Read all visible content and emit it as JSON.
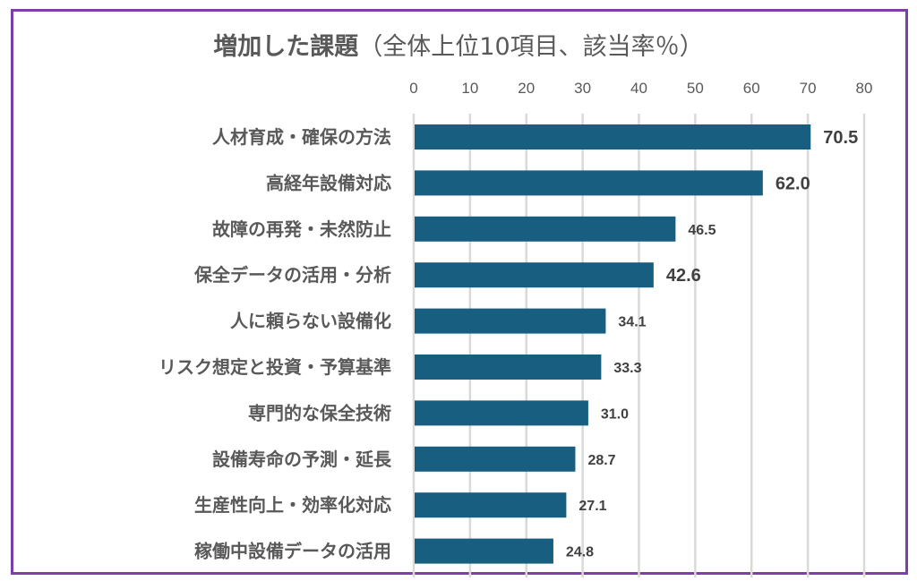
{
  "chart_data": {
    "type": "bar",
    "orientation": "horizontal",
    "title": "増加した課題",
    "subtitle": "（全体上位10項目、該当率％）",
    "xlabel": "",
    "ylabel": "",
    "xlim": [
      0,
      80
    ],
    "ticks": [
      "0",
      "10",
      "20",
      "30",
      "40",
      "50",
      "60",
      "70",
      "80"
    ],
    "tick_values": [
      0,
      10,
      20,
      30,
      40,
      50,
      60,
      70,
      80
    ],
    "grid": true,
    "axis_position": "top",
    "categories": [
      "人材育成・確保の方法",
      "高経年設備対応",
      "故障の再発・未然防止",
      "保全データの活用・分析",
      "人に頼らない設備化",
      "リスク想定と投資・予算基準",
      "専門的な保全技術",
      "設備寿命の予測・延長",
      "生産性向上・効率化対応",
      "稼働中設備データの活用"
    ],
    "values": [
      70.5,
      62.0,
      46.5,
      42.6,
      34.1,
      33.3,
      31.0,
      28.7,
      27.1,
      24.8
    ],
    "value_labels": [
      "70.5",
      "62.0",
      "46.5",
      "42.6",
      "34.1",
      "33.3",
      "31.0",
      "28.7",
      "27.1",
      "24.8"
    ],
    "label_emphasis": [
      true,
      true,
      false,
      true,
      false,
      false,
      false,
      false,
      false,
      false
    ],
    "colors": {
      "bar": "#175e80",
      "grid": "#d9d9d9",
      "frame": "#7a3fa8",
      "text": "#595959",
      "value_text": "#404040"
    }
  }
}
